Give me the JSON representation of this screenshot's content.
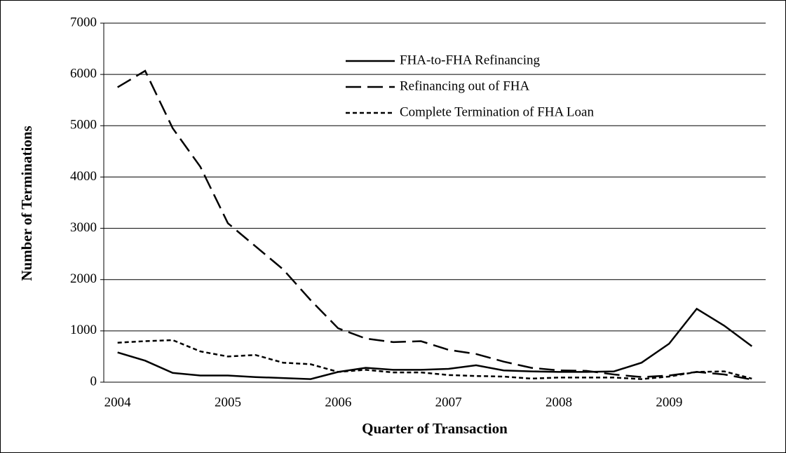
{
  "chart_data": {
    "type": "line",
    "x_label": "Quarter of Transaction",
    "y_label": "Number of Terminations",
    "categories": [
      "2004",
      null,
      null,
      null,
      "2005",
      null,
      null,
      null,
      "2006",
      null,
      null,
      null,
      "2007",
      null,
      null,
      null,
      "2008",
      null,
      null,
      null,
      "2009",
      null,
      null,
      null
    ],
    "series": [
      {
        "name": "FHA-to-FHA Refinancing",
        "color": "#000000",
        "dash": "solid",
        "values": [
          580,
          420,
          180,
          130,
          130,
          100,
          80,
          60,
          200,
          280,
          240,
          240,
          260,
          330,
          230,
          210,
          200,
          200,
          210,
          380,
          750,
          1430,
          1100,
          700
        ]
      },
      {
        "name": "Refinancing out of FHA",
        "color": "#000000",
        "dash": "long",
        "values": [
          5750,
          6070,
          4950,
          4200,
          3100,
          2650,
          2200,
          1600,
          1050,
          850,
          780,
          800,
          630,
          550,
          400,
          280,
          230,
          220,
          150,
          100,
          130,
          200,
          150,
          50
        ]
      },
      {
        "name": "Complete Termination  of FHA Loan",
        "color": "#000000",
        "dash": "short",
        "values": [
          770,
          800,
          820,
          600,
          500,
          530,
          380,
          350,
          200,
          240,
          190,
          190,
          140,
          120,
          110,
          70,
          90,
          90,
          90,
          60,
          110,
          200,
          210,
          70
        ]
      }
    ],
    "ylim": [
      0,
      7000
    ],
    "yticks": [
      0,
      1000,
      2000,
      3000,
      4000,
      5000,
      6000,
      7000
    ],
    "grid": true
  }
}
